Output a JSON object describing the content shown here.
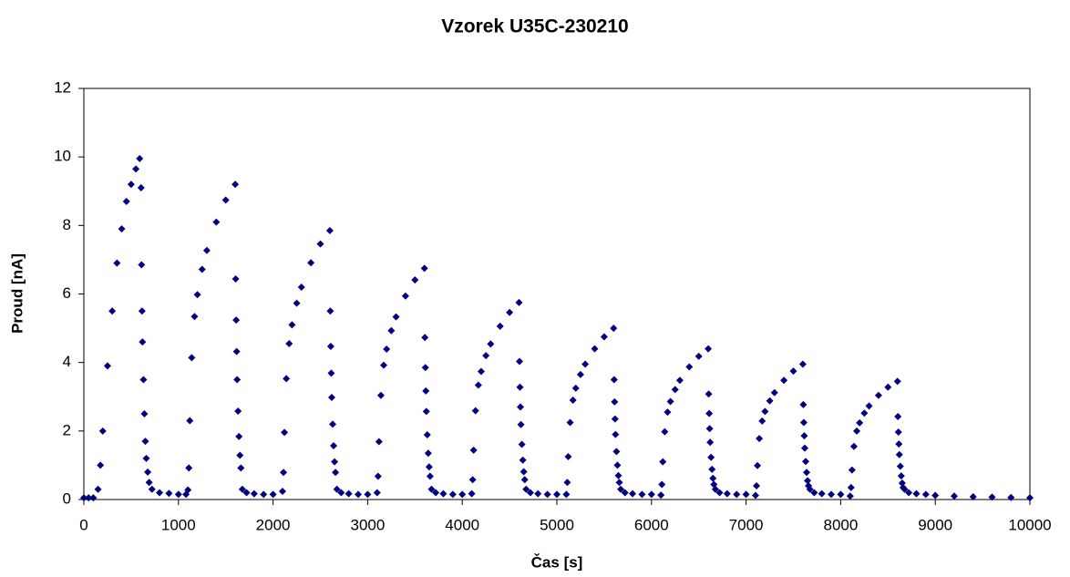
{
  "chart_data": {
    "type": "scatter",
    "title": "Vzorek U35C-230210",
    "xlabel": "Čas [s]",
    "ylabel": "Proud [nA]",
    "color": "#000080",
    "xlim": [
      0,
      10000
    ],
    "xticks": [
      0,
      1000,
      2000,
      3000,
      4000,
      5000,
      6000,
      7000,
      8000,
      9000,
      10000
    ],
    "ylim": [
      0,
      12
    ],
    "yticks": [
      0,
      2,
      4,
      6,
      8,
      10,
      12
    ],
    "grid": false,
    "x": [
      0,
      50,
      100,
      150,
      175,
      200,
      250,
      300,
      350,
      400,
      450,
      500,
      550,
      590,
      605,
      610,
      615,
      620,
      630,
      640,
      650,
      660,
      675,
      690,
      720,
      800,
      900,
      1000,
      1080,
      1100,
      1110,
      1120,
      1140,
      1170,
      1200,
      1250,
      1300,
      1400,
      1500,
      1600,
      1605,
      1610,
      1615,
      1620,
      1630,
      1640,
      1650,
      1660,
      1675,
      1720,
      1800,
      1900,
      2000,
      2100,
      2110,
      2120,
      2140,
      2170,
      2200,
      2250,
      2300,
      2400,
      2500,
      2600,
      2605,
      2610,
      2615,
      2620,
      2630,
      2640,
      2650,
      2660,
      2675,
      2720,
      2800,
      2900,
      3000,
      3100,
      3110,
      3120,
      3140,
      3170,
      3200,
      3250,
      3300,
      3400,
      3500,
      3600,
      3605,
      3610,
      3615,
      3620,
      3630,
      3640,
      3650,
      3660,
      3675,
      3720,
      3800,
      3900,
      4000,
      4100,
      4110,
      4120,
      4140,
      4170,
      4200,
      4250,
      4300,
      4400,
      4500,
      4600,
      4605,
      4610,
      4615,
      4620,
      4630,
      4640,
      4650,
      4660,
      4675,
      4720,
      4800,
      4900,
      5000,
      5100,
      5110,
      5120,
      5140,
      5170,
      5200,
      5250,
      5300,
      5400,
      5500,
      5600,
      5605,
      5610,
      5615,
      5620,
      5630,
      5640,
      5650,
      5660,
      5675,
      5720,
      5800,
      5900,
      6000,
      6100,
      6110,
      6120,
      6140,
      6170,
      6200,
      6250,
      6300,
      6400,
      6500,
      6600,
      6605,
      6610,
      6615,
      6620,
      6630,
      6640,
      6650,
      6660,
      6675,
      6720,
      6800,
      6900,
      7000,
      7100,
      7110,
      7120,
      7140,
      7170,
      7200,
      7250,
      7300,
      7400,
      7500,
      7600,
      7605,
      7610,
      7615,
      7620,
      7630,
      7640,
      7650,
      7660,
      7675,
      7720,
      7800,
      7900,
      8000,
      8100,
      8110,
      8120,
      8140,
      8170,
      8200,
      8250,
      8300,
      8400,
      8500,
      8600,
      8605,
      8610,
      8615,
      8620,
      8630,
      8640,
      8650,
      8660,
      8675,
      8720,
      8800,
      8900,
      9000,
      9200,
      9400,
      9600,
      9800,
      10000
    ],
    "values": [
      0.05,
      0.05,
      0.05,
      0.3,
      1.0,
      2.0,
      3.9,
      5.5,
      6.9,
      7.9,
      8.7,
      9.2,
      9.65,
      9.95,
      9.1,
      6.85,
      5.5,
      4.6,
      3.5,
      2.5,
      1.7,
      1.2,
      0.8,
      0.5,
      0.3,
      0.2,
      0.18,
      0.15,
      0.15,
      0.28,
      0.92,
      2.3,
      4.14,
      5.34,
      5.98,
      6.72,
      7.27,
      8.1,
      8.74,
      9.2,
      6.44,
      5.24,
      4.32,
      3.5,
      2.58,
      1.84,
      1.29,
      0.92,
      0.3,
      0.2,
      0.17,
      0.15,
      0.15,
      0.24,
      0.79,
      1.96,
      3.53,
      4.55,
      5.1,
      5.73,
      6.2,
      6.91,
      7.46,
      7.85,
      5.5,
      4.47,
      3.69,
      2.98,
      2.2,
      1.57,
      1.1,
      0.79,
      0.3,
      0.2,
      0.17,
      0.15,
      0.15,
      0.2,
      0.68,
      1.69,
      3.04,
      3.92,
      4.39,
      4.93,
      5.33,
      5.94,
      6.41,
      6.75,
      4.73,
      3.85,
      3.17,
      2.57,
      1.89,
      1.35,
      0.95,
      0.68,
      0.3,
      0.2,
      0.17,
      0.15,
      0.15,
      0.17,
      0.58,
      1.44,
      2.59,
      3.34,
      3.74,
      4.2,
      4.54,
      5.06,
      5.46,
      5.75,
      4.03,
      3.28,
      2.7,
      2.19,
      1.61,
      1.15,
      0.81,
      0.58,
      0.3,
      0.2,
      0.17,
      0.15,
      0.15,
      0.15,
      0.5,
      1.25,
      2.25,
      2.9,
      3.25,
      3.65,
      3.95,
      4.4,
      4.75,
      5.0,
      3.5,
      2.85,
      2.35,
      1.9,
      1.4,
      1.0,
      0.7,
      0.5,
      0.3,
      0.2,
      0.17,
      0.15,
      0.15,
      0.13,
      0.44,
      1.1,
      1.98,
      2.55,
      2.86,
      3.21,
      3.48,
      3.87,
      4.18,
      4.4,
      3.08,
      2.51,
      2.07,
      1.67,
      1.23,
      0.88,
      0.62,
      0.44,
      0.3,
      0.2,
      0.17,
      0.15,
      0.15,
      0.12,
      0.4,
      0.99,
      1.78,
      2.29,
      2.57,
      2.88,
      3.12,
      3.48,
      3.75,
      3.95,
      2.77,
      2.25,
      1.86,
      1.5,
      1.11,
      0.79,
      0.55,
      0.4,
      0.3,
      0.2,
      0.17,
      0.15,
      0.15,
      0.1,
      0.35,
      0.86,
      1.55,
      2.0,
      2.24,
      2.52,
      2.73,
      3.04,
      3.28,
      3.45,
      2.42,
      1.97,
      1.62,
      1.31,
      0.97,
      0.69,
      0.48,
      0.35,
      0.3,
      0.2,
      0.17,
      0.15,
      0.12,
      0.1,
      0.08,
      0.07,
      0.06,
      0.05
    ]
  }
}
